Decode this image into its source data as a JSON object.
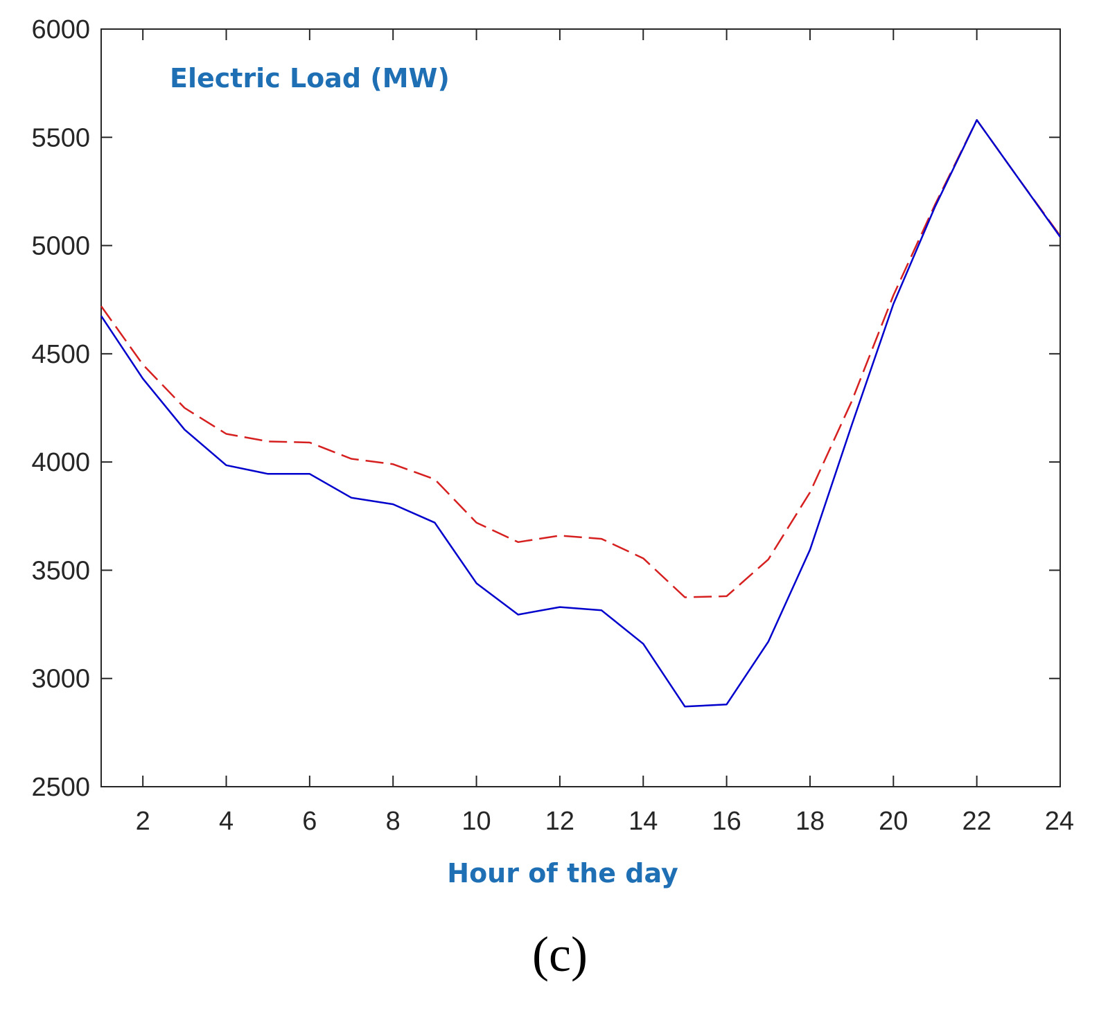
{
  "chart_data": {
    "type": "line",
    "title": "Electric Load (MW)",
    "xlabel": "Hour of the day",
    "ylabel": "",
    "panel_label": "(c)",
    "xlim": [
      1,
      24
    ],
    "ylim": [
      2500,
      6000
    ],
    "xticks": [
      2,
      4,
      6,
      8,
      10,
      12,
      14,
      16,
      18,
      20,
      22,
      24
    ],
    "yticks": [
      2500,
      3000,
      3500,
      4000,
      4500,
      5000,
      5500,
      6000
    ],
    "grid": false,
    "x": [
      1,
      2,
      3,
      4,
      5,
      6,
      7,
      8,
      9,
      10,
      11,
      12,
      13,
      14,
      15,
      16,
      17,
      18,
      19,
      20,
      21,
      22,
      23,
      24
    ],
    "series": [
      {
        "name": "solid",
        "color": "#0000cc",
        "style": "solid",
        "values": [
          4675,
          4385,
          4150,
          3985,
          3945,
          3945,
          3835,
          3805,
          3720,
          3440,
          3295,
          3330,
          3315,
          3160,
          2870,
          2880,
          3170,
          3595,
          4170,
          4730,
          5180,
          5580,
          5310,
          5040
        ]
      },
      {
        "name": "dashed",
        "color": "#d62020",
        "style": "dashed",
        "values": [
          4720,
          4450,
          4250,
          4130,
          4095,
          4090,
          4015,
          3990,
          3920,
          3720,
          3630,
          3660,
          3645,
          3555,
          3375,
          3380,
          3550,
          3860,
          4280,
          4770,
          5190,
          5580,
          5310,
          5045
        ]
      }
    ]
  }
}
